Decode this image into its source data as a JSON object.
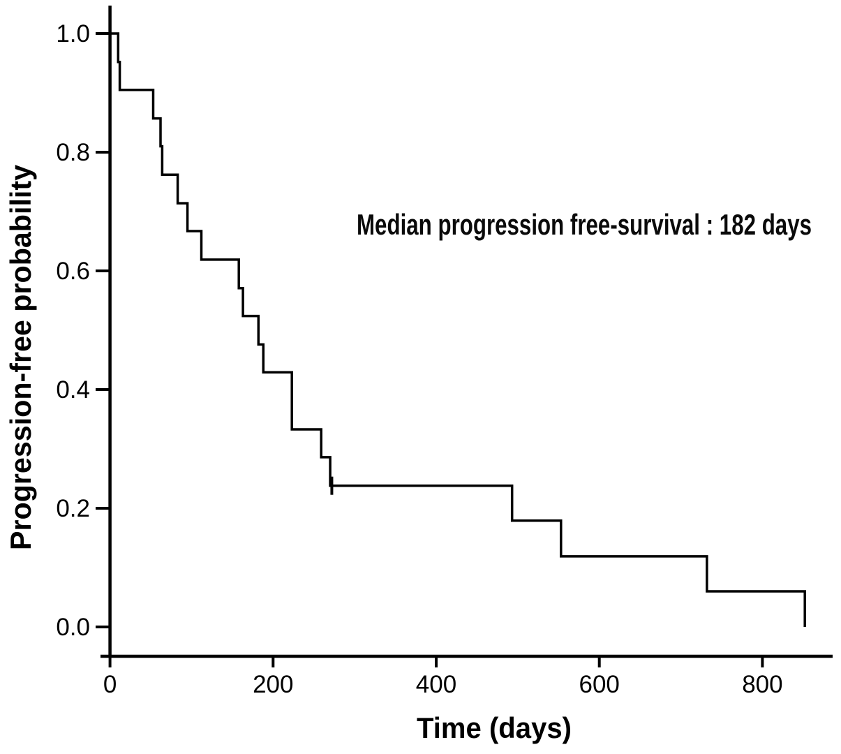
{
  "chart_data": {
    "type": "line",
    "chart_kind": "kaplan_meier_step",
    "title": "",
    "xlabel": "Time (days)",
    "ylabel": "Progression-free probability",
    "annotation": "Median progression free-survival : 182 days",
    "median_pfs_days": 182,
    "xlim": [
      0,
      886
    ],
    "ylim": [
      0.0,
      1.0
    ],
    "grid": false,
    "legend": "none",
    "axis_color": "#000000",
    "x_ticks": [
      {
        "v": 0,
        "label": "0"
      },
      {
        "v": 200,
        "label": "200"
      },
      {
        "v": 400,
        "label": "400"
      },
      {
        "v": 600,
        "label": "600"
      },
      {
        "v": 800,
        "label": "800"
      }
    ],
    "y_ticks": [
      {
        "v": 1.0,
        "label": "1.0"
      },
      {
        "v": 0.8,
        "label": "0.8"
      },
      {
        "v": 0.6,
        "label": "0.6"
      },
      {
        "v": 0.4,
        "label": "0.4"
      },
      {
        "v": 0.2,
        "label": "0.2"
      },
      {
        "v": 0.0,
        "label": "0.0"
      }
    ],
    "series": [
      {
        "name": "progression-free survival",
        "color": "#000000",
        "step_points_day_prob": [
          [
            0,
            1.0
          ],
          [
            10,
            0.952
          ],
          [
            12,
            0.905
          ],
          [
            53,
            0.857
          ],
          [
            62,
            0.81
          ],
          [
            64,
            0.762
          ],
          [
            83,
            0.714
          ],
          [
            95,
            0.667
          ],
          [
            112,
            0.619
          ],
          [
            158,
            0.571
          ],
          [
            163,
            0.524
          ],
          [
            182,
            0.476
          ],
          [
            188,
            0.429
          ],
          [
            223,
            0.333
          ],
          [
            259,
            0.286
          ],
          [
            270,
            0.238
          ],
          [
            493,
            0.179
          ],
          [
            553,
            0.119
          ],
          [
            732,
            0.06
          ],
          [
            852,
            0.0
          ]
        ],
        "censor_marks_day_prob": [
          [
            272,
            0.238
          ]
        ]
      }
    ]
  }
}
